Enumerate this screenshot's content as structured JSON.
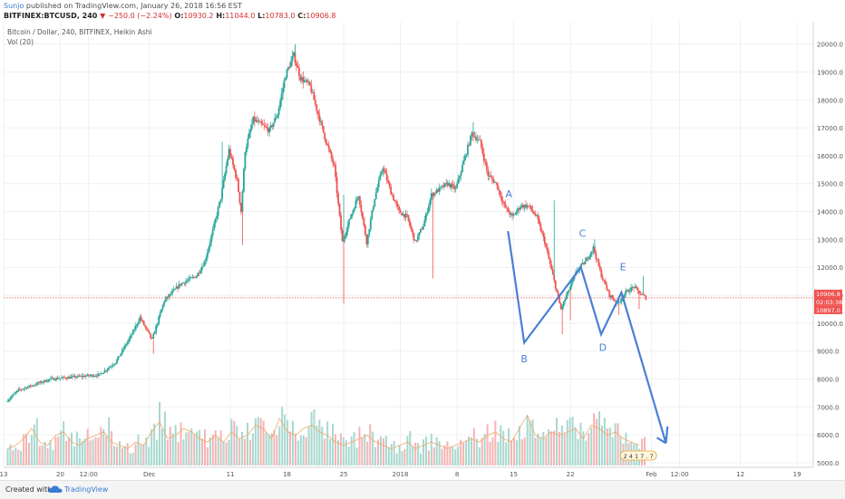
{
  "header": {
    "author": "Sunjo",
    "published": "published on TradingView.com, January 26, 2018 16:56 EST",
    "symbol": "BITFINEX:BTCUSD, 240",
    "change": "−250.0 (−2.24%)",
    "o_label": "O:",
    "o_val": "10930.2",
    "h_label": "H:",
    "h_val": "11044.0",
    "l_label": "L:",
    "l_val": "10783.0",
    "c_label": "C:",
    "c_val": "10906.8"
  },
  "chart_data": {
    "type": "candlestick",
    "title": "Bitcoin / Dollar, 240, BITFINEX, Heikin Ashi",
    "volume_label": "Vol (20)",
    "y_ticks": [
      5000,
      6000,
      7000,
      8000,
      9000,
      10000,
      11000,
      12000,
      13000,
      14000,
      15000,
      16000,
      17000,
      18000,
      19000,
      20000
    ],
    "y_tick_labels": [
      "5000.0",
      "6000.0",
      "7000.0",
      "8000.0",
      "9000.0",
      "10000.0",
      "11000.0",
      "12000.0",
      "13000.0",
      "14000.0",
      "15000.0",
      "16000.0",
      "17000.0",
      "18000.0",
      "19000.0",
      "20000.0"
    ],
    "ylim": [
      4900,
      20800
    ],
    "x_tick_labels": [
      "13",
      "20",
      "12:00",
      "Dec",
      "11",
      "18",
      "25",
      "2018",
      "8",
      "15",
      "22",
      "Feb",
      "12:00",
      "12",
      "19"
    ],
    "x_tick_days": [
      13,
      20,
      23.5,
      31,
      41,
      48,
      55,
      62,
      69,
      76,
      83,
      93,
      96.5,
      104,
      111
    ],
    "xlim": [
      13,
      113
    ],
    "last_price": "10906.8",
    "countdown": "02:03:38",
    "last_close": "10897.0",
    "price_path": [
      [
        13.5,
        7200
      ],
      [
        15,
        7600
      ],
      [
        17,
        7800
      ],
      [
        19,
        8000
      ],
      [
        21,
        8050
      ],
      [
        23,
        8100
      ],
      [
        25,
        8150
      ],
      [
        27,
        8600
      ],
      [
        29,
        9600
      ],
      [
        30,
        10200
      ],
      [
        31.5,
        9400
      ],
      [
        33,
        10800
      ],
      [
        35,
        11400
      ],
      [
        37,
        11700
      ],
      [
        38,
        12200
      ],
      [
        39,
        13300
      ],
      [
        40,
        14500
      ],
      [
        41,
        16200
      ],
      [
        42,
        15100
      ],
      [
        42.5,
        14000
      ],
      [
        43,
        16200
      ],
      [
        44,
        17300
      ],
      [
        46,
        16900
      ],
      [
        47,
        17500
      ],
      [
        48,
        18900
      ],
      [
        49,
        19600
      ],
      [
        49.8,
        18800
      ],
      [
        51,
        18500
      ],
      [
        52,
        17500
      ],
      [
        53,
        16500
      ],
      [
        54,
        15600
      ],
      [
        55,
        12900
      ],
      [
        56,
        13800
      ],
      [
        57,
        14600
      ],
      [
        58,
        12900
      ],
      [
        59,
        14500
      ],
      [
        60,
        15600
      ],
      [
        61,
        14700
      ],
      [
        62,
        14000
      ],
      [
        63,
        13800
      ],
      [
        64,
        12900
      ],
      [
        65,
        13500
      ],
      [
        66,
        14600
      ],
      [
        67,
        14800
      ],
      [
        68,
        15000
      ],
      [
        69,
        14800
      ],
      [
        70,
        15800
      ],
      [
        71,
        16800
      ],
      [
        72,
        16500
      ],
      [
        73,
        15300
      ],
      [
        74,
        15000
      ],
      [
        75,
        14200
      ],
      [
        76,
        13800
      ],
      [
        77,
        14200
      ],
      [
        78,
        14200
      ],
      [
        79,
        13800
      ],
      [
        80,
        12900
      ],
      [
        81,
        11700
      ],
      [
        82,
        10500
      ],
      [
        83,
        11200
      ],
      [
        84,
        11900
      ],
      [
        85,
        12200
      ],
      [
        86,
        12700
      ],
      [
        86.5,
        12200
      ],
      [
        87,
        11700
      ],
      [
        88,
        11000
      ],
      [
        89,
        10700
      ],
      [
        90,
        11100
      ],
      [
        91,
        11300
      ],
      [
        92,
        11000
      ],
      [
        92.5,
        10906.8
      ]
    ],
    "spike_lows": [
      [
        31.5,
        8900
      ],
      [
        42.5,
        12800
      ],
      [
        55,
        10700
      ],
      [
        66,
        11600
      ],
      [
        82,
        9600
      ],
      [
        83,
        10100
      ],
      [
        89,
        10300
      ],
      [
        91.5,
        10500
      ]
    ],
    "spike_highs": [
      [
        40,
        16500
      ],
      [
        49,
        20000
      ],
      [
        55,
        14600
      ],
      [
        71,
        17200
      ],
      [
        81,
        14400
      ],
      [
        86,
        13000
      ],
      [
        92,
        11700
      ]
    ],
    "volume": [
      0.25,
      0.3,
      0.4,
      0.55,
      0.35,
      0.3,
      0.45,
      0.5,
      0.35,
      0.3,
      0.4,
      0.45,
      0.5,
      0.35,
      0.3,
      0.25,
      0.35,
      0.3,
      0.5,
      0.65,
      0.4,
      0.45,
      0.55,
      0.5,
      0.4,
      0.35,
      0.45,
      0.35,
      0.5,
      0.4,
      0.45,
      0.6,
      0.55,
      0.4,
      0.7,
      0.5,
      0.45,
      0.55,
      0.6,
      0.5,
      0.45,
      0.35,
      0.3,
      0.35,
      0.4,
      0.45,
      0.35,
      0.3,
      0.25,
      0.3,
      0.35,
      0.25,
      0.3,
      0.35,
      0.3,
      0.25,
      0.3,
      0.35,
      0.4,
      0.35,
      0.45,
      0.5,
      0.4,
      0.35,
      0.55,
      0.75,
      0.45,
      0.4,
      0.5,
      0.45,
      0.5,
      0.55,
      0.4,
      0.6,
      0.55,
      0.45,
      0.5,
      0.4,
      0.35,
      0.3
    ],
    "pattern": {
      "color": "#4a7fd4",
      "points": [
        [
          75.3,
          13300
        ],
        [
          77.3,
          9300
        ],
        [
          84.3,
          12000
        ],
        [
          86.8,
          9600
        ],
        [
          89.3,
          11100
        ],
        [
          94.8,
          5700
        ]
      ],
      "arrowhead_from": [
        95,
        6300
      ],
      "labels": [
        {
          "text": "A",
          "day": 75.4,
          "price": 14500
        },
        {
          "text": "B",
          "day": 77.3,
          "price": 8600
        },
        {
          "text": "C",
          "day": 84.5,
          "price": 13100
        },
        {
          "text": "D",
          "day": 87.0,
          "price": 9000
        },
        {
          "text": "E",
          "day": 89.5,
          "price": 11900
        }
      ]
    },
    "grid": true
  },
  "footer": {
    "created_with": "Created with",
    "brand": "TradingView"
  },
  "badge": "2 4 1 7 . 7",
  "colors": {
    "up": "#26a69a",
    "down": "#ef5350",
    "pattern": "#4a7fd4",
    "last_price": "#ef5350",
    "grid": "#eef0f2"
  }
}
